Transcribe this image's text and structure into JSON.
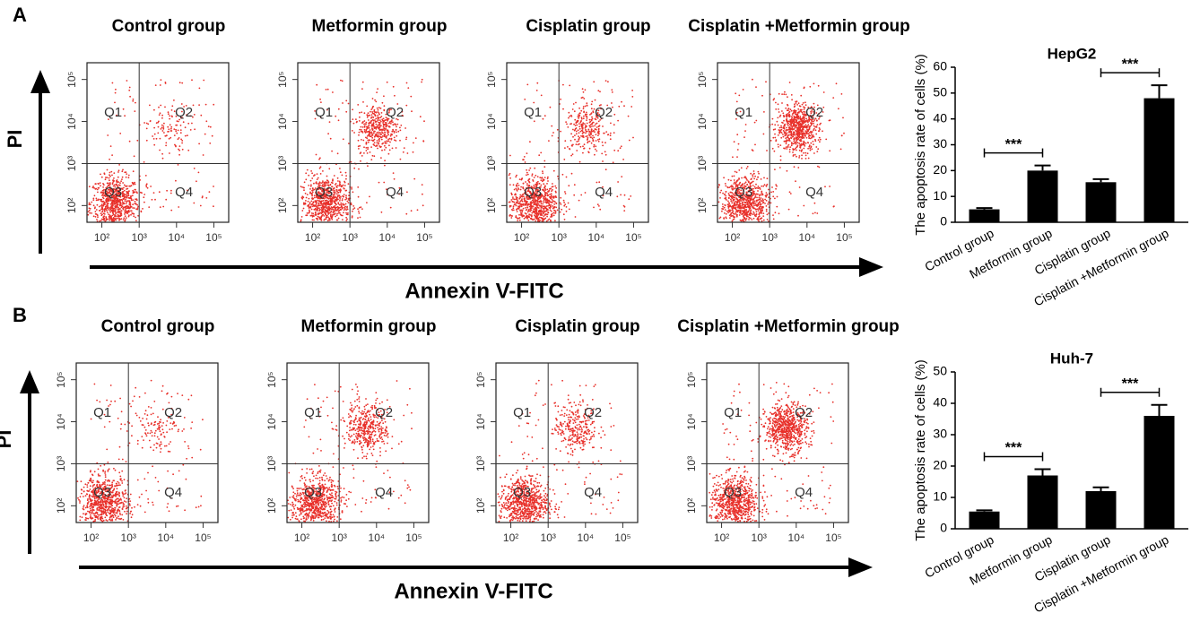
{
  "panels": [
    {
      "label": "A",
      "flow": {
        "titles": [
          "Control group",
          "Metformin group",
          "Cisplatin group",
          "Cisplatin +Metformin group"
        ],
        "quadrants": [
          "Q1",
          "Q2",
          "Q3",
          "Q4"
        ],
        "log": true,
        "xlim": [
          40,
          250000
        ],
        "ylim": [
          40,
          250000
        ],
        "ticks": [
          {
            "value": 100,
            "label": "10²"
          },
          {
            "value": 1000,
            "label": "10³"
          },
          {
            "value": 10000,
            "label": "10⁴"
          },
          {
            "value": 100000,
            "label": "10⁵"
          }
        ],
        "gate": [
          1000,
          1000
        ],
        "y_label": "PI",
        "x_label": "Annexin V-FITC"
      }
    },
    {
      "label": "B",
      "flow": {
        "titles": [
          "Control group",
          "Metformin group",
          "Cisplatin group",
          "Cisplatin +Metformin group"
        ],
        "quadrants": [
          "Q1",
          "Q2",
          "Q3",
          "Q4"
        ],
        "log": true,
        "xlim": [
          40,
          250000
        ],
        "ylim": [
          40,
          250000
        ],
        "ticks": [
          {
            "value": 100,
            "label": "10²"
          },
          {
            "value": 1000,
            "label": "10³"
          },
          {
            "value": 10000,
            "label": "10⁴"
          },
          {
            "value": 100000,
            "label": "10⁵"
          }
        ],
        "gate": [
          1000,
          1000
        ],
        "y_label": "PI",
        "x_label": "Annexin V-FITC"
      }
    }
  ],
  "chart_data": [
    {
      "type": "bar",
      "title": "HepG2",
      "categories": [
        "Control group",
        "Metformin group",
        "Cisplatin group",
        "Cisplatin +Metformin group"
      ],
      "values": [
        5,
        20,
        15.5,
        48
      ],
      "errors": [
        0.5,
        2,
        1.2,
        5
      ],
      "color": "#000000",
      "ylim": [
        0,
        60
      ],
      "yticks": [
        0,
        10,
        20,
        30,
        40,
        50,
        60
      ],
      "y_label": "The apoptosis rate of cells (%)",
      "significance": [
        {
          "from": 0,
          "to": 1,
          "label": "***"
        },
        {
          "from": 2,
          "to": 3,
          "label": "***"
        }
      ]
    },
    {
      "type": "bar",
      "title": "Huh-7",
      "categories": [
        "Control group",
        "Metformin group",
        "Cisplatin group",
        "Cisplatin +Metformin group"
      ],
      "values": [
        5.5,
        17,
        12,
        36
      ],
      "errors": [
        0.4,
        2,
        1.2,
        3.5
      ],
      "color": "#000000",
      "ylim": [
        0,
        50
      ],
      "yticks": [
        0,
        10,
        20,
        30,
        40,
        50
      ],
      "y_label": "The apoptosis rate of cells (%)",
      "significance": [
        {
          "from": 0,
          "to": 1,
          "label": "***"
        },
        {
          "from": 2,
          "to": 3,
          "label": "***"
        }
      ]
    }
  ]
}
